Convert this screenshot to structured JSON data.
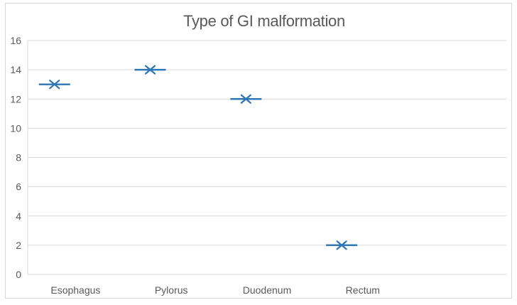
{
  "chart_data": {
    "type": "scatter",
    "title": "Type of GI malformation",
    "categories": [
      "Esophagus",
      "Pylorus",
      "Duodenum",
      "Rectum"
    ],
    "values": [
      13,
      14,
      12,
      2
    ],
    "series": [
      {
        "name": "Type of GI malformation",
        "values": [
          13,
          14,
          12,
          2
        ]
      }
    ],
    "xlabel": "",
    "ylabel": "",
    "ylim": [
      0,
      16
    ],
    "yticks": [
      0,
      2,
      4,
      6,
      8,
      10,
      12,
      14,
      16
    ],
    "grid": "horizontal",
    "legend": "none",
    "marker_style": "x-with-horizontal-dash"
  },
  "colors": {
    "series_marker": "#2E75B6",
    "gridline": "#D9D9D9",
    "axis_line": "#D9D9D9",
    "text": "#595959",
    "chart_border": "#D7D7D7",
    "background": "#FFFFFF"
  }
}
